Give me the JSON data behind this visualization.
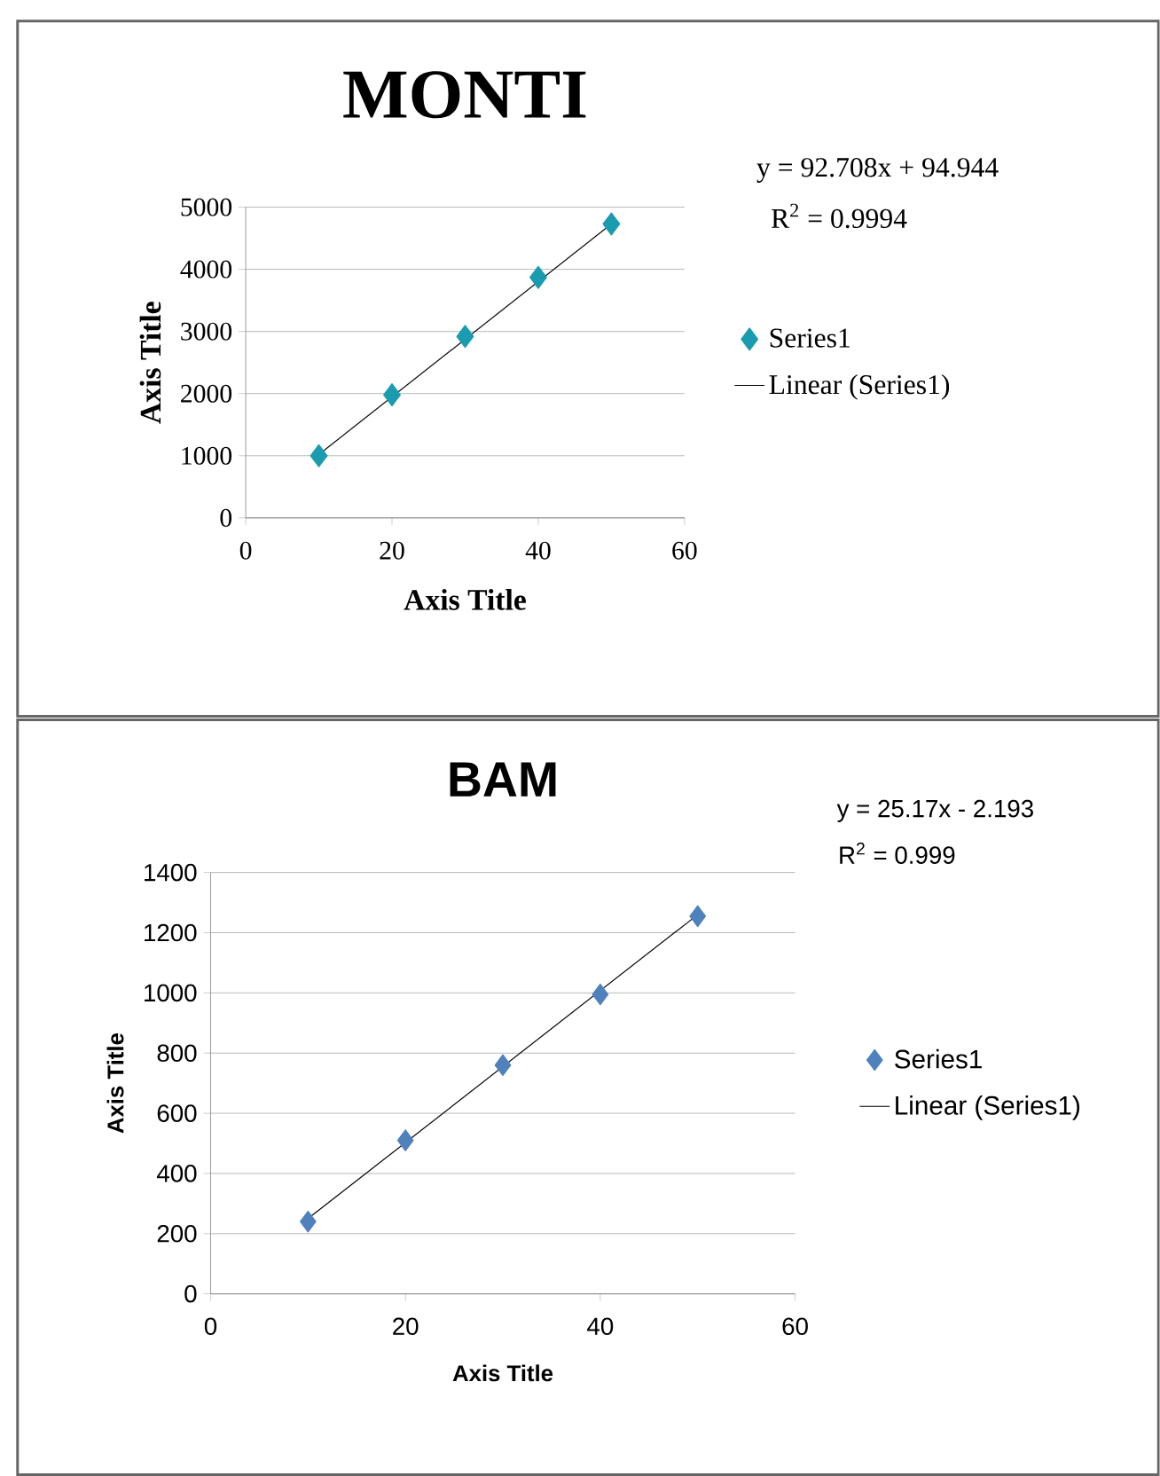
{
  "chart_data": [
    {
      "type": "scatter",
      "title": "MONTI",
      "xlabel": "Axis Title",
      "ylabel": "Axis Title",
      "annotations": [
        "y = 92.708x + 94.944",
        "R$^{2}$ = 0.9994"
      ],
      "xlim": [
        0,
        60
      ],
      "xticks": [
        0,
        20,
        40,
        60
      ],
      "ylim": [
        0,
        5000
      ],
      "yticks": [
        0,
        1000,
        2000,
        3000,
        4000,
        5000
      ],
      "grid": "y",
      "legend": "right",
      "series": [
        {
          "name": "Series1",
          "marker": "diamond",
          "color": "#1a9cb0",
          "x": [
            10,
            20,
            30,
            40,
            50
          ],
          "values": [
            1000,
            1980,
            2920,
            3870,
            4730
          ]
        },
        {
          "name": "Linear (Series1)",
          "type": "line",
          "marker": "none",
          "line_style": "solid",
          "color": "#000000",
          "x": [
            10,
            50
          ],
          "values": [
            1020,
            4730
          ]
        }
      ]
    },
    {
      "type": "scatter",
      "title": "BAM",
      "xlabel": "Axis Title",
      "ylabel": "Axis Title",
      "annotations": [
        "y = 25.17x - 2.193",
        "R$^{2}$ = 0.999"
      ],
      "xlim": [
        0,
        60
      ],
      "xticks": [
        0,
        20,
        40,
        60
      ],
      "ylim": [
        0,
        1400
      ],
      "yticks": [
        0,
        200,
        400,
        600,
        800,
        1000,
        1200,
        1400
      ],
      "grid": "y",
      "legend": "right",
      "series": [
        {
          "name": "Series1",
          "marker": "diamond",
          "color": "#4f81bd",
          "x": [
            10,
            20,
            30,
            40,
            50
          ],
          "values": [
            240,
            510,
            760,
            995,
            1255
          ]
        },
        {
          "name": "Linear (Series1)",
          "type": "line",
          "marker": "none",
          "line_style": "solid",
          "color": "#000000",
          "x": [
            10,
            50
          ],
          "values": [
            250,
            1260
          ]
        }
      ]
    }
  ]
}
